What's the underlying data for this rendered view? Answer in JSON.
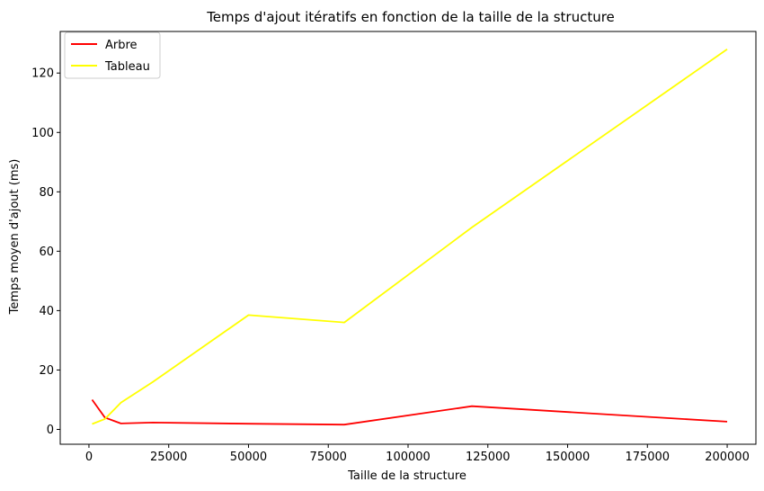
{
  "chart_data": {
    "type": "line",
    "title": "Temps d'ajout itératifs en fonction de la taille de la structure",
    "xlabel": "Taille de la structure",
    "ylabel": "Temps moyen d'ajout (ms)",
    "xlim": [
      -9000,
      209000
    ],
    "ylim": [
      -5,
      134
    ],
    "xticks": [
      0,
      25000,
      50000,
      75000,
      100000,
      125000,
      150000,
      175000,
      200000
    ],
    "yticks": [
      0,
      20,
      40,
      60,
      80,
      100,
      120
    ],
    "grid": false,
    "legend_position": "top-left",
    "series": [
      {
        "name": "Arbre",
        "color": "#ff0000",
        "x": [
          1000,
          5000,
          10000,
          20000,
          50000,
          80000,
          120000,
          200000
        ],
        "y": [
          10,
          4,
          2,
          2.3,
          1.9,
          1.6,
          7.8,
          2.6
        ]
      },
      {
        "name": "Tableau",
        "color": "#ffff00",
        "x": [
          1000,
          5000,
          10000,
          20000,
          50000,
          80000,
          120000,
          200000
        ],
        "y": [
          1.8,
          3.5,
          9,
          16,
          38.5,
          36,
          68,
          128
        ]
      }
    ]
  }
}
